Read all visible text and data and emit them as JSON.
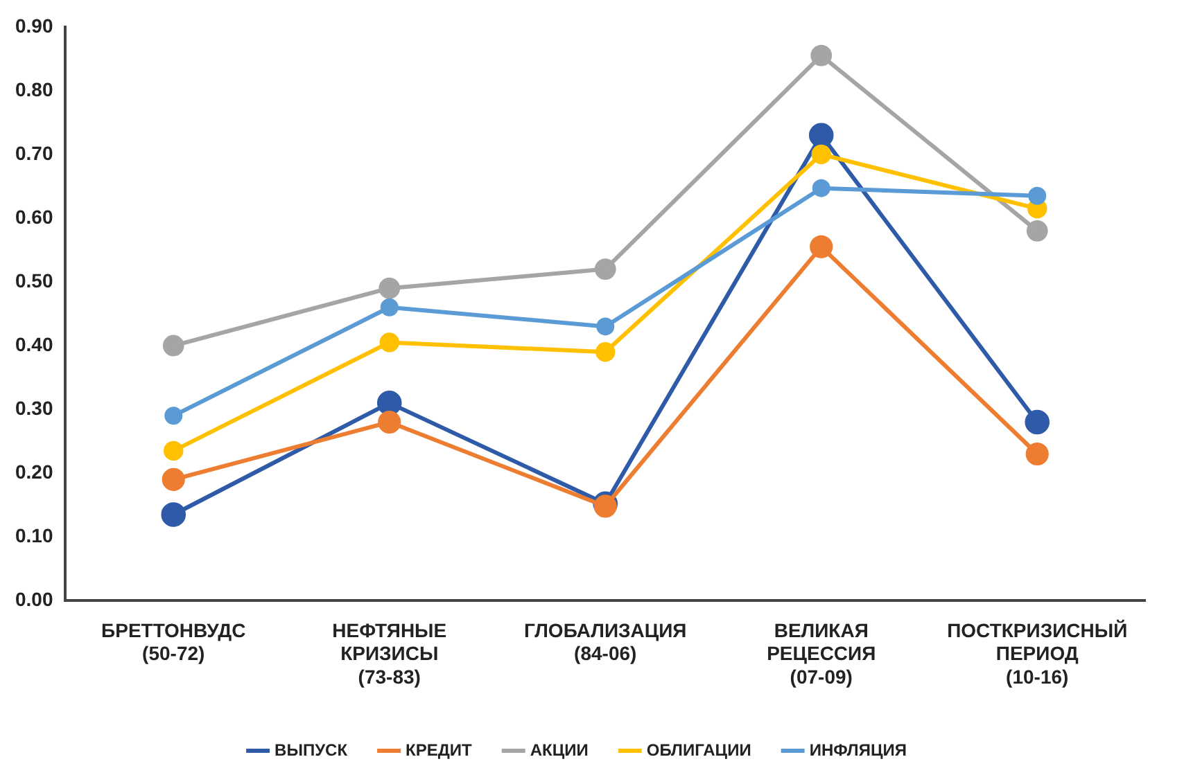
{
  "chart_data": {
    "type": "line",
    "categories": [
      "БРЕТТОНВУДС\n(50-72)",
      "НЕФТЯНЫЕ\nКРИЗИСЫ\n(73-83)",
      "ГЛОБАЛИЗАЦИЯ\n(84-06)",
      "ВЕЛИКАЯ\nРЕЦЕССИЯ\n(07-09)",
      "ПОСТКРИЗИСНЫЙ\nПЕРИОД\n(10-16)"
    ],
    "series": [
      {
        "name": "ВЫПУСК",
        "color": "#2e5aa8",
        "values": [
          0.135,
          0.31,
          0.152,
          0.73,
          0.28
        ]
      },
      {
        "name": "КРЕДИТ",
        "color": "#ed7d31",
        "values": [
          0.19,
          0.28,
          0.148,
          0.555,
          0.23
        ]
      },
      {
        "name": "АКЦИИ",
        "color": "#a5a5a5",
        "values": [
          0.4,
          0.49,
          0.52,
          0.855,
          0.58
        ]
      },
      {
        "name": "ОБЛИГАЦИИ",
        "color": "#ffc000",
        "values": [
          0.235,
          0.405,
          0.39,
          0.7,
          0.615
        ]
      },
      {
        "name": "ИНФЛЯЦИЯ",
        "color": "#5b9bd5",
        "values": [
          0.29,
          0.46,
          0.43,
          0.647,
          0.635
        ]
      }
    ],
    "ylim": [
      0,
      0.9
    ],
    "yticks": [
      {
        "value": 0,
        "label": "0.00"
      },
      {
        "value": 0.1,
        "label": "0.10"
      },
      {
        "value": 0.2,
        "label": "0.20"
      },
      {
        "value": 0.3,
        "label": "0.30"
      },
      {
        "value": 0.4,
        "label": "0.40"
      },
      {
        "value": 0.5,
        "label": "0.50"
      },
      {
        "value": 0.6,
        "label": "0.60"
      },
      {
        "value": 0.7,
        "label": "0.70"
      },
      {
        "value": 0.8,
        "label": "0.80"
      },
      {
        "value": 0.9,
        "label": "0.90"
      }
    ],
    "grid": false,
    "legend": "bottom",
    "marker": "circle",
    "line_style": "solid"
  }
}
